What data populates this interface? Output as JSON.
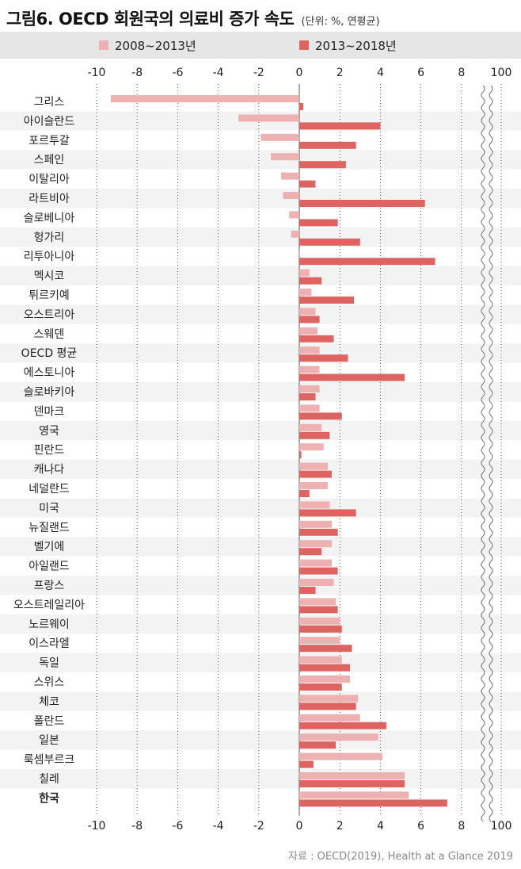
{
  "title": "그림6. OECD 회원국의 의료비 증가 속도",
  "unit_note": "(단위: %, 연평균)",
  "source": "자료 : OECD(2019), Health at a Glance 2019",
  "colors": {
    "series1": "#eeb1b1",
    "series2": "#de6461",
    "band": "#f3f3f3",
    "legend_band": "#e6e6e6"
  },
  "chart_data": {
    "type": "bar",
    "orientation": "horizontal",
    "xlim": [
      -10,
      8
    ],
    "x_ticks": [
      -10,
      -8,
      -6,
      -4,
      -2,
      0,
      2,
      4,
      6,
      8
    ],
    "x_tick_labels": [
      "-10",
      "-8",
      "-6",
      "-4",
      "-2",
      "0",
      "2",
      "4",
      "6",
      "8"
    ],
    "axis_break_label": "100",
    "legend_position": "top",
    "grid": "vertical dotted",
    "highlight_category": "한국",
    "categories": [
      "그리스",
      "아이슬란드",
      "포르투갈",
      "스페인",
      "이탈리아",
      "라트비아",
      "슬로베니아",
      "헝가리",
      "리투아니아",
      "멕시코",
      "튀르키예",
      "오스트리아",
      "스웨덴",
      "OECD 평균",
      "에스토니아",
      "슬로바키아",
      "덴마크",
      "영국",
      "핀란드",
      "캐나다",
      "네덜란드",
      "미국",
      "뉴질랜드",
      "벨기에",
      "아일랜드",
      "프랑스",
      "오스트레일리아",
      "노르웨이",
      "이스라엘",
      "독일",
      "스위스",
      "체코",
      "폴란드",
      "일본",
      "룩셈부르크",
      "칠레",
      "한국"
    ],
    "series": [
      {
        "name": "2008~2013년",
        "values": [
          -9.3,
          -3.0,
          -1.9,
          -1.4,
          -0.9,
          -0.8,
          -0.5,
          -0.4,
          0.0,
          0.5,
          0.6,
          0.8,
          0.9,
          1.0,
          1.0,
          1.0,
          1.0,
          1.1,
          1.2,
          1.4,
          1.4,
          1.5,
          1.6,
          1.6,
          1.6,
          1.7,
          1.8,
          2.0,
          2.0,
          2.1,
          2.5,
          2.9,
          3.0,
          3.9,
          4.1,
          5.2,
          5.4
        ]
      },
      {
        "name": "2013~2018년",
        "values": [
          0.2,
          4.0,
          2.8,
          2.3,
          0.8,
          6.2,
          1.9,
          3.0,
          6.7,
          1.1,
          2.7,
          1.0,
          1.7,
          2.4,
          5.2,
          0.8,
          2.1,
          1.5,
          0.1,
          1.6,
          0.5,
          2.8,
          1.9,
          1.1,
          1.9,
          0.8,
          1.9,
          2.1,
          2.6,
          2.5,
          2.1,
          2.8,
          4.3,
          1.8,
          0.7,
          5.2,
          7.3
        ]
      }
    ]
  }
}
